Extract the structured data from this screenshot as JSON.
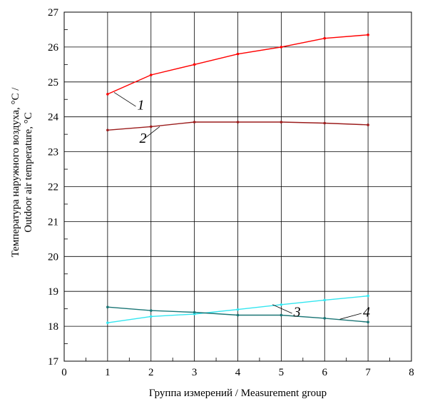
{
  "chart_data": {
    "type": "line",
    "title": "",
    "xlabel": "Группа измерений / Measurement group",
    "ylabel_line1": "Температура наружного воздуха, °C /",
    "ylabel_line2": "Outdoor air temperature, °C",
    "xlim": [
      0,
      8
    ],
    "ylim": [
      17,
      27
    ],
    "x_ticks": [
      "0",
      "1",
      "2",
      "3",
      "4",
      "5",
      "6",
      "7",
      "8"
    ],
    "y_ticks": [
      "17",
      "18",
      "19",
      "20",
      "21",
      "22",
      "23",
      "24",
      "25",
      "26",
      "27"
    ],
    "grid": true,
    "legend": "none",
    "x": [
      1,
      2,
      3,
      4,
      5,
      6,
      7
    ],
    "series": [
      {
        "name": "1",
        "color": "#ff0000",
        "values": [
          24.65,
          25.2,
          25.5,
          25.8,
          26.0,
          26.25,
          26.35
        ]
      },
      {
        "name": "2",
        "color": "#9b1c1c",
        "values": [
          23.62,
          23.72,
          23.85,
          23.85,
          23.85,
          23.82,
          23.77
        ]
      },
      {
        "name": "3",
        "color": "#33e6f0",
        "values": [
          18.1,
          18.28,
          18.35,
          18.48,
          18.62,
          18.75,
          18.87
        ]
      },
      {
        "name": "4",
        "color": "#1a7575",
        "values": [
          18.55,
          18.45,
          18.4,
          18.32,
          18.32,
          18.23,
          18.12
        ]
      }
    ]
  }
}
